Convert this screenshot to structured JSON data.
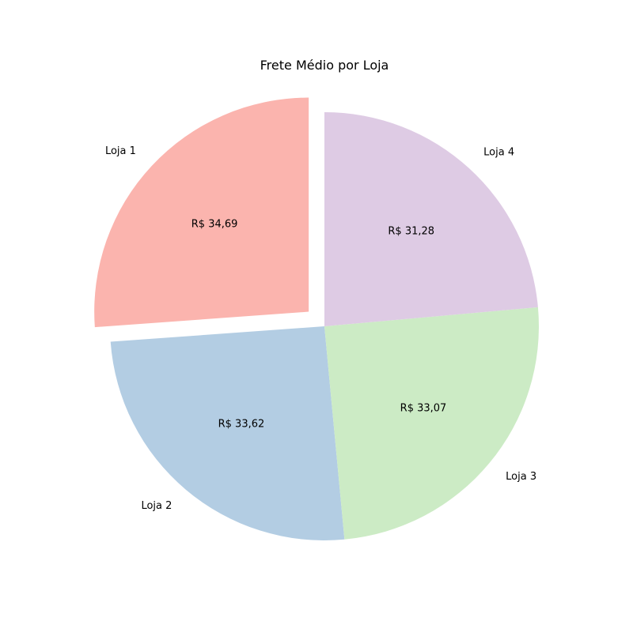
{
  "chart_data": {
    "type": "pie",
    "title": "Frete Médio por Loja",
    "categories": [
      "Loja 1",
      "Loja 2",
      "Loja 3",
      "Loja 4"
    ],
    "values": [
      34.69,
      33.62,
      33.07,
      31.28
    ],
    "value_labels": [
      "R$ 34,69",
      "R$ 33,62",
      "R$ 33,07",
      "R$ 31,28"
    ],
    "colors": [
      "#fbb4ae",
      "#b3cde3",
      "#ccebc5",
      "#decbe4"
    ],
    "start_angle_deg": 90,
    "direction": "counterclockwise",
    "explode": [
      0.1,
      0,
      0,
      0
    ],
    "legend": "none"
  }
}
